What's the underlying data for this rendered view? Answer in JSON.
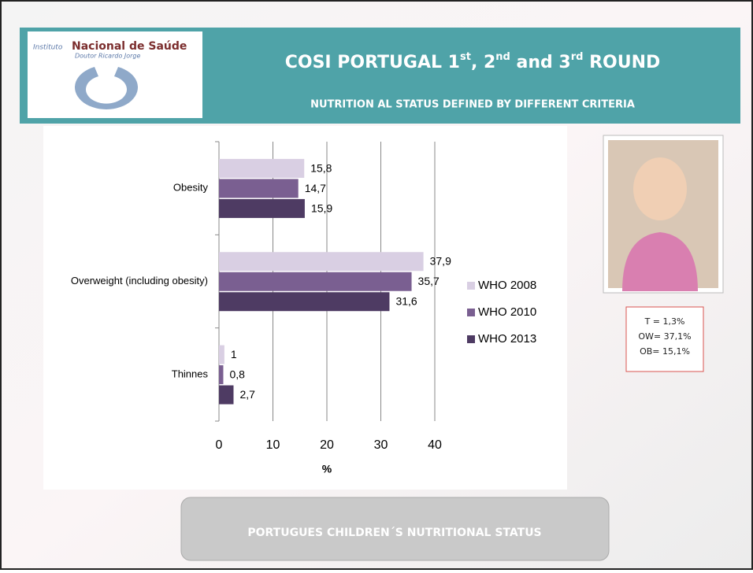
{
  "header": {
    "logo_line1": "Instituto",
    "logo_line2": "Nacional de Saúde",
    "logo_line3": "Doutor Ricardo Jorge",
    "title_parts": [
      "COSI PORTUGAL 1",
      "st",
      ",  2",
      "nd",
      " and 3",
      "rd",
      " ROUND"
    ],
    "subtitle": "NUTRITION AL STATUS DEFINED BY DIFFERENT CRITERIA"
  },
  "chart_data": {
    "type": "bar",
    "orientation": "horizontal",
    "categories": [
      "Obesity",
      "Overweight (including obesity)",
      "Thinnes"
    ],
    "series": [
      {
        "name": "WHO 2008",
        "color": "#d9cfe3",
        "values": [
          15.8,
          37.9,
          1
        ],
        "value_labels": [
          "15,8",
          "37,9",
          "1"
        ]
      },
      {
        "name": "WHO 2010",
        "color": "#7a5f91",
        "values": [
          14.7,
          35.7,
          0.8
        ],
        "value_labels": [
          "14,7",
          "35,7",
          "0,8"
        ]
      },
      {
        "name": "WHO 2013",
        "color": "#4e3b63",
        "values": [
          15.9,
          31.6,
          2.7
        ],
        "value_labels": [
          "15,9",
          "31,6",
          "2,7"
        ]
      }
    ],
    "xlim": [
      0,
      40
    ],
    "xticks": [
      0,
      10,
      20,
      30,
      40
    ],
    "xlabel": "%",
    "grid": true,
    "legend": "right"
  },
  "note": {
    "lines": [
      "T = 1,3%",
      "OW= 37,1%",
      "OB= 15,1%"
    ]
  },
  "button": "PORTUGUES CHILDREN´S NUTRITIONAL STATUS"
}
